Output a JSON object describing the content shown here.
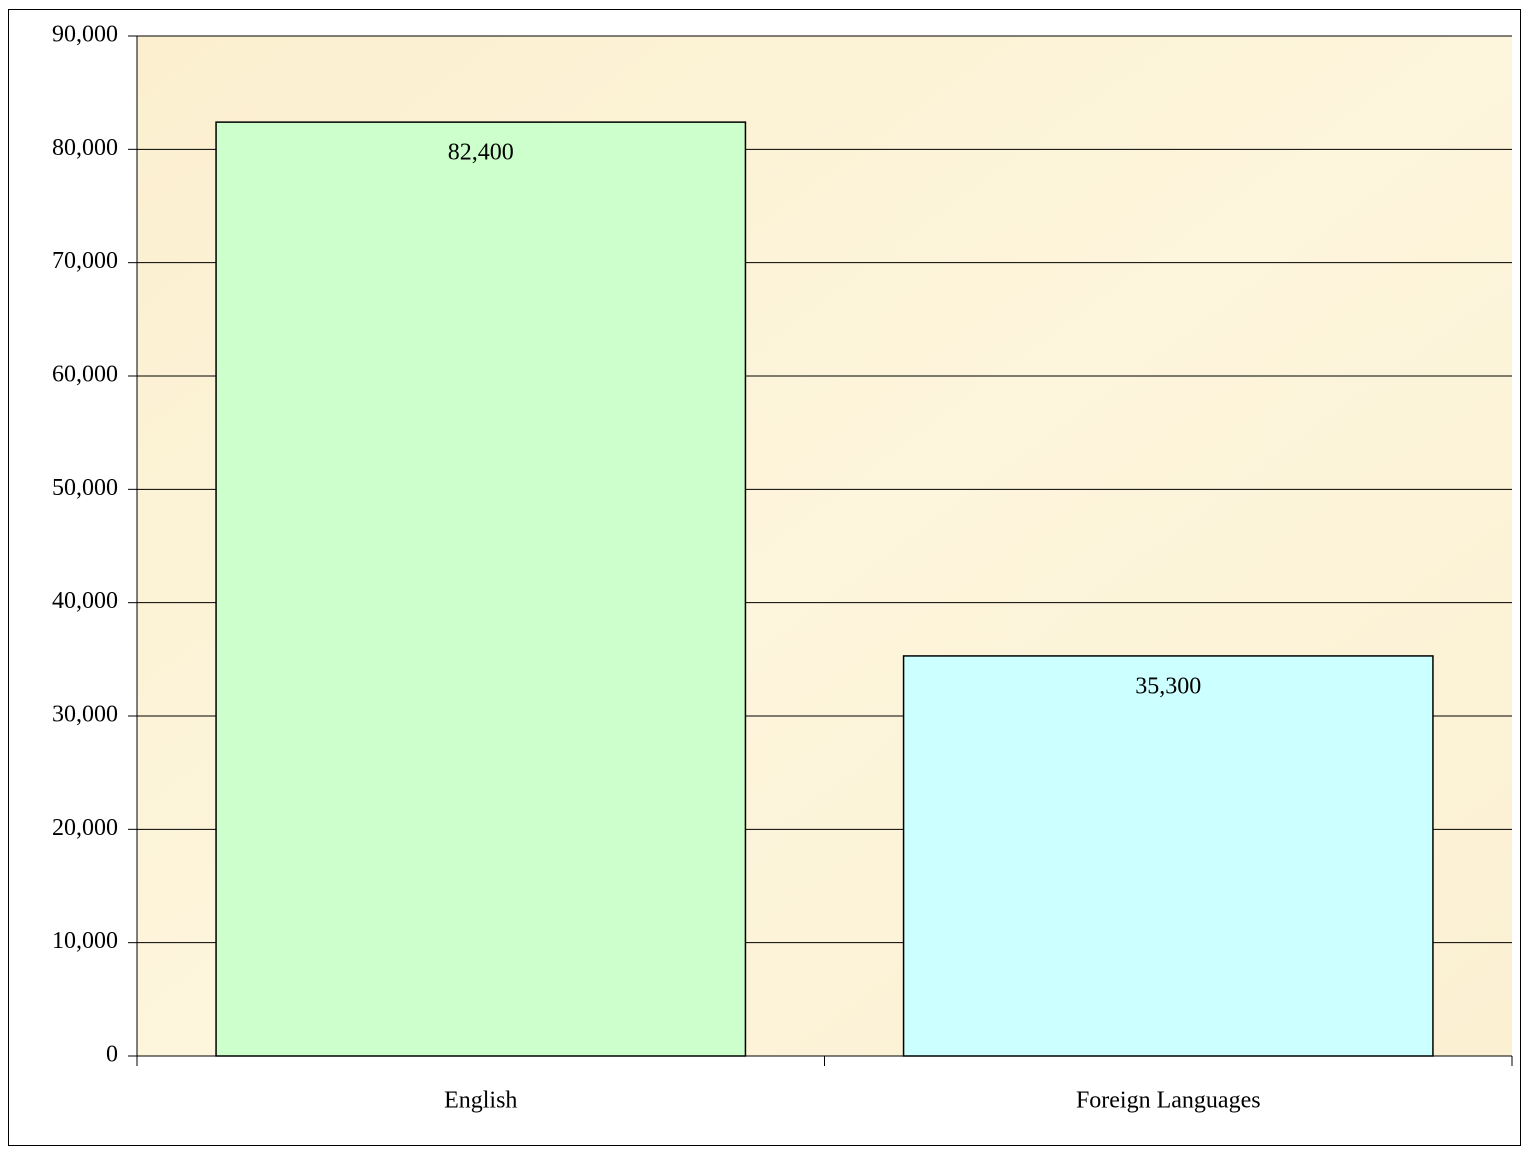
{
  "chart_data": {
    "type": "bar",
    "categories": [
      "English",
      "Foreign Languages"
    ],
    "values": [
      82400,
      35300
    ],
    "value_labels": [
      "82,400",
      "35,300"
    ],
    "colors": [
      "#ccffcc",
      "#ccffff"
    ],
    "ylim": [
      0,
      90000
    ],
    "yticks": [
      0,
      {
        "value": 10000,
        "label": "10,000"
      },
      {
        "value": 20000,
        "label": "20,000"
      },
      {
        "value": 30000,
        "label": "30,000"
      },
      {
        "value": 40000,
        "label": "40,000"
      },
      {
        "value": 50000,
        "label": "50,000"
      },
      {
        "value": 60000,
        "label": "60,000"
      },
      {
        "value": 70000,
        "label": "70,000"
      },
      {
        "value": 80000,
        "label": "80,000"
      },
      {
        "value": 90000,
        "label": "90,000"
      }
    ],
    "grid": true
  }
}
